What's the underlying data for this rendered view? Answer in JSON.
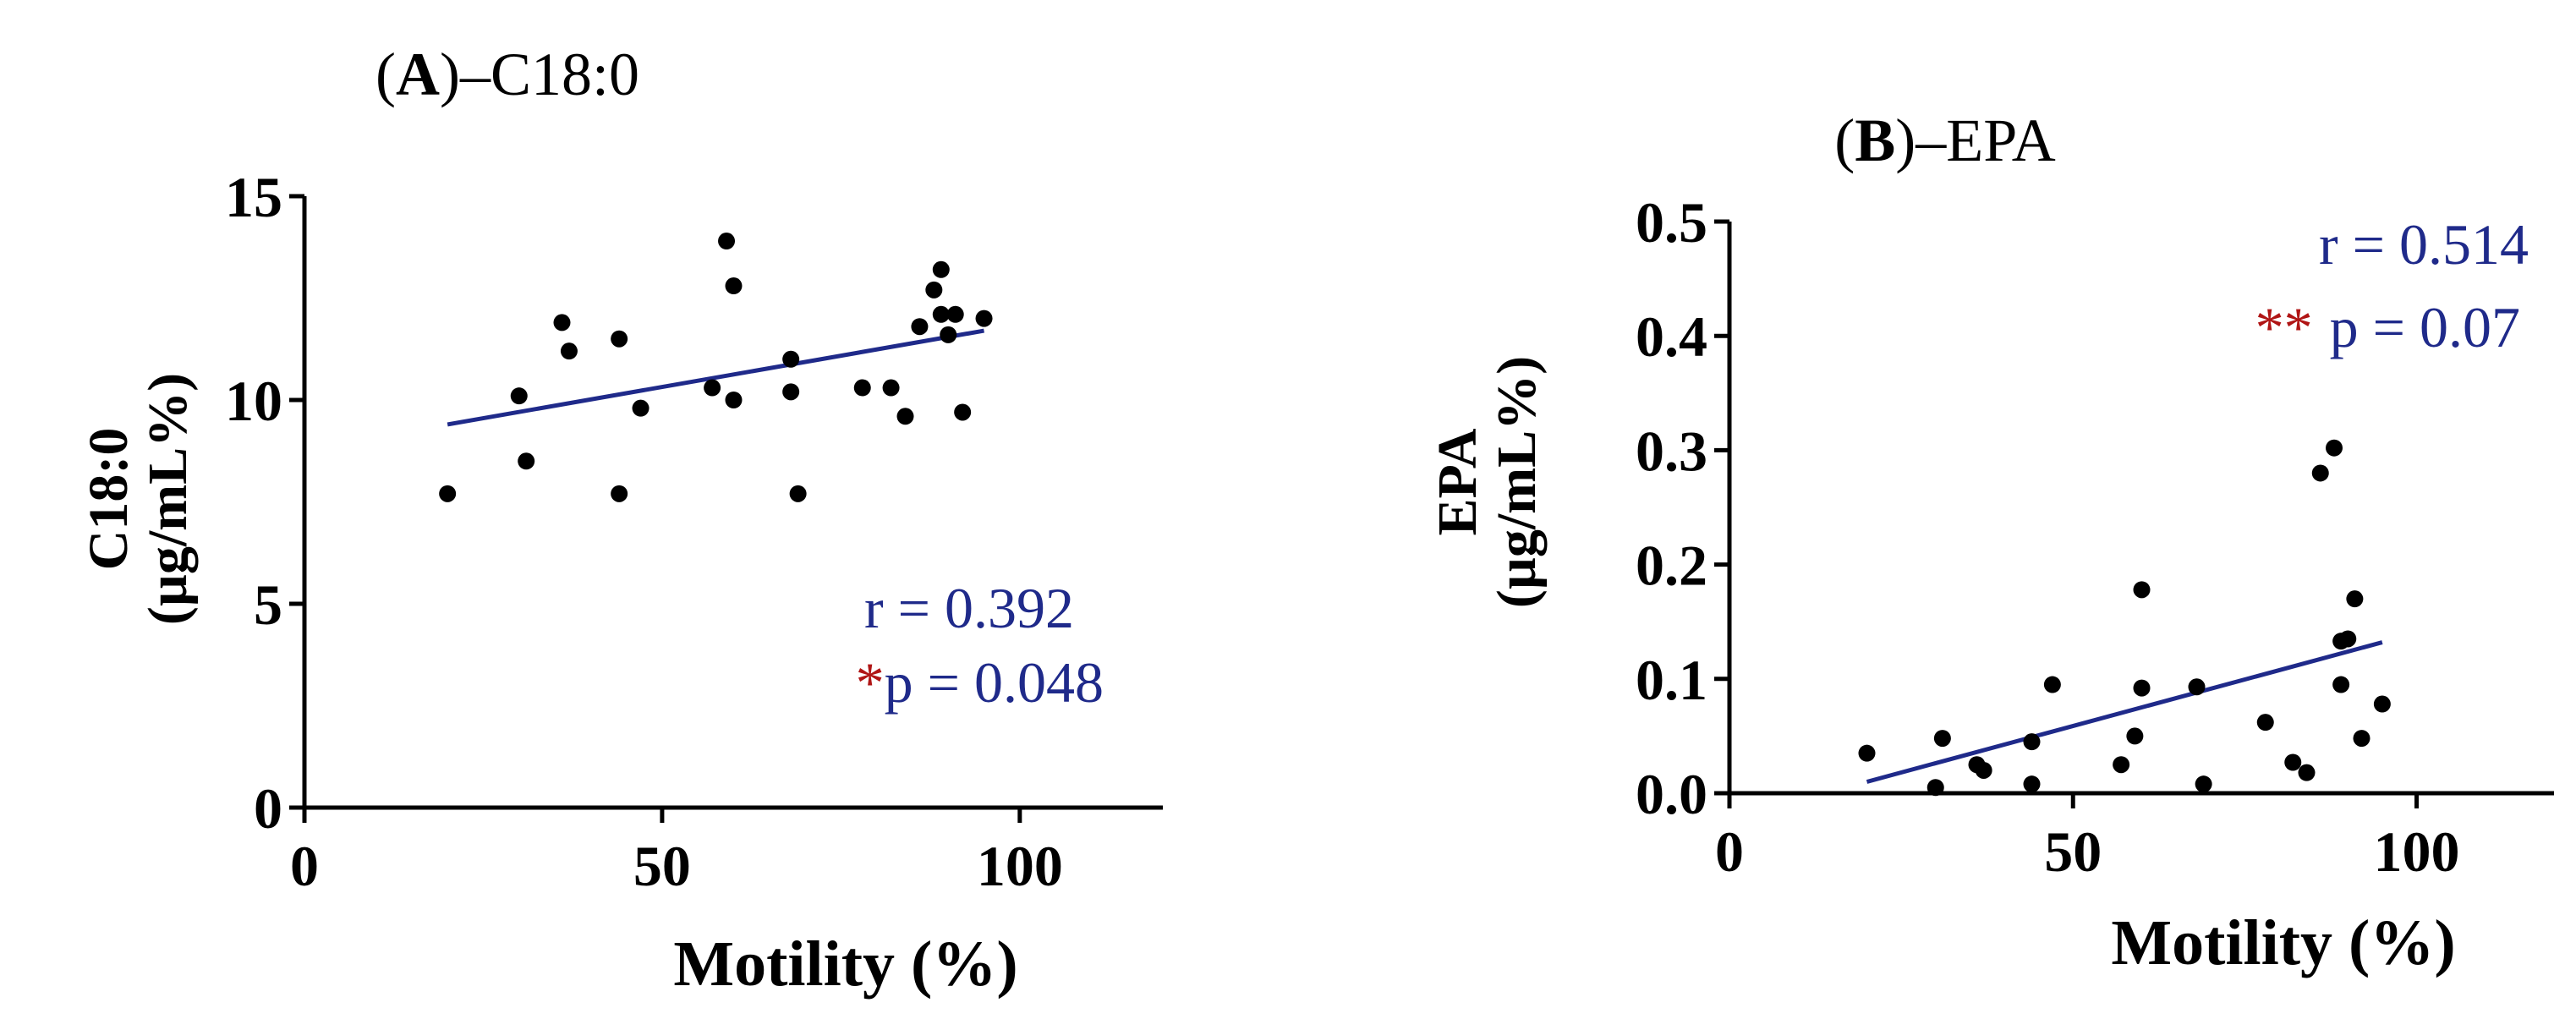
{
  "chart_data": [
    {
      "type": "scatter",
      "panel_letter": "A",
      "title_suffix": "–C18:0",
      "xlabel": "Motility (%)",
      "ylabel_line1": "C18:0",
      "ylabel_line2": "(µg/mL%)",
      "xlim": [
        0,
        120
      ],
      "ylim": [
        0,
        15
      ],
      "xticks": [
        0,
        50,
        100
      ],
      "yticks": [
        0,
        5,
        10,
        15
      ],
      "xtick_labels": [
        "0",
        "50",
        "100"
      ],
      "ytick_labels": [
        "0",
        "5",
        "10",
        "15"
      ],
      "points": [
        [
          20,
          7.7
        ],
        [
          30,
          10.1
        ],
        [
          31,
          8.5
        ],
        [
          36,
          11.9
        ],
        [
          37,
          11.2
        ],
        [
          44,
          11.5
        ],
        [
          44,
          7.7
        ],
        [
          47,
          9.8
        ],
        [
          57,
          10.3
        ],
        [
          59,
          13.9
        ],
        [
          60,
          12.8
        ],
        [
          60,
          10.0
        ],
        [
          68,
          10.2
        ],
        [
          68,
          11.0
        ],
        [
          69,
          7.7
        ],
        [
          78,
          10.3
        ],
        [
          82,
          10.3
        ],
        [
          84,
          9.6
        ],
        [
          86,
          11.8
        ],
        [
          88,
          12.7
        ],
        [
          89,
          13.2
        ],
        [
          89,
          12.1
        ],
        [
          90,
          11.6
        ],
        [
          91,
          12.1
        ],
        [
          92,
          9.7
        ],
        [
          95,
          12.0
        ]
      ],
      "fit_line": {
        "x": [
          20,
          95
        ],
        "y": [
          9.4,
          11.7
        ]
      },
      "stats": {
        "r": "r = 0.392",
        "star": "*",
        "p": "p = 0.048"
      },
      "colors": {
        "stat": "#1f2a8a",
        "star": "#b01515",
        "fit": "#1f2a8a"
      }
    },
    {
      "type": "scatter",
      "panel_letter": "B",
      "title_suffix": "–EPA",
      "xlabel": "Motility (%)",
      "ylabel_line1": "EPA",
      "ylabel_line2": "(µg/mL%)",
      "xlim": [
        0,
        120
      ],
      "ylim": [
        0,
        0.5
      ],
      "xticks": [
        0,
        50,
        100
      ],
      "yticks": [
        0,
        0.1,
        0.2,
        0.3,
        0.4,
        0.5
      ],
      "xtick_labels": [
        "0",
        "50",
        "100"
      ],
      "ytick_labels": [
        "0.0",
        "0.1",
        "0.2",
        "0.3",
        "0.4",
        "0.5"
      ],
      "points": [
        [
          20,
          0.035
        ],
        [
          30,
          0.005
        ],
        [
          31,
          0.048
        ],
        [
          36,
          0.025
        ],
        [
          37,
          0.02
        ],
        [
          44,
          0.045
        ],
        [
          44,
          0.008
        ],
        [
          47,
          0.095
        ],
        [
          57,
          0.025
        ],
        [
          59,
          0.05
        ],
        [
          60,
          0.178
        ],
        [
          60,
          0.092
        ],
        [
          68,
          0.093
        ],
        [
          69,
          0.008
        ],
        [
          78,
          0.062
        ],
        [
          82,
          0.027
        ],
        [
          84,
          0.018
        ],
        [
          86,
          0.28
        ],
        [
          88,
          0.302
        ],
        [
          89,
          0.095
        ],
        [
          89,
          0.133
        ],
        [
          90,
          0.135
        ],
        [
          91,
          0.17
        ],
        [
          92,
          0.048
        ],
        [
          95,
          0.078
        ]
      ],
      "fit_line": {
        "x": [
          20,
          95
        ],
        "y": [
          0.01,
          0.132
        ]
      },
      "stats": {
        "r": "r = 0.514",
        "star": "**",
        "p": "p = 0.07"
      },
      "colors": {
        "stat": "#1f2a8a",
        "star": "#b01515",
        "fit": "#1f2a8a"
      }
    }
  ]
}
